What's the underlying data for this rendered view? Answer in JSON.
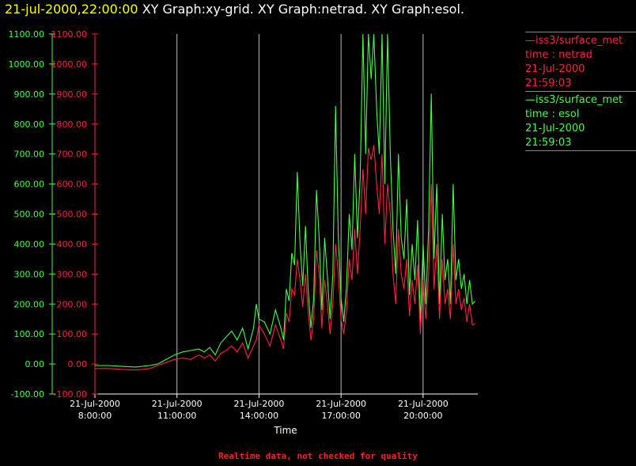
{
  "header": {
    "timestamp": "21-jul-2000,22:00:00",
    "graphs": "XY Graph:xy-grid.  XY Graph:netrad.  XY Graph:esol."
  },
  "legend": [
    {
      "line1": "—iss3/surface_met",
      "line2": "time : netrad",
      "line3": "21-Jul-2000",
      "line4": "21:59:03",
      "color": "#ff2040"
    },
    {
      "line1": "—iss3/surface_met",
      "line2": "time : esol",
      "line3": "21-Jul-2000",
      "line4": "21:59:03",
      "color": "#40ff40"
    }
  ],
  "footnote": "Realtime data, not checked for quality",
  "chart_data": {
    "type": "line",
    "xlabel": "Time",
    "x_ticks": [
      {
        "date": "21-Jul-2000",
        "time": "8:00:00",
        "hour": 8
      },
      {
        "date": "21-Jul-2000",
        "time": "11:00:00",
        "hour": 11
      },
      {
        "date": "21-Jul-2000",
        "time": "14:00:00",
        "hour": 14
      },
      {
        "date": "21-Jul-2000",
        "time": "17:00:00",
        "hour": 17
      },
      {
        "date": "21-Jul-2000",
        "time": "20:00:00",
        "hour": 20
      }
    ],
    "xlim_hours": [
      8.0,
      22.0
    ],
    "ylim": [
      -100,
      1100
    ],
    "y_ticks": [
      "-100.00",
      "0.00",
      "100.00",
      "200.00",
      "300.00",
      "400.00",
      "500.00",
      "600.00",
      "700.00",
      "800.00",
      "900.00",
      "1000.00",
      "1100.00"
    ],
    "grid": "vertical lines at major x ticks",
    "series": [
      {
        "name": "time : netrad",
        "color": "#ff2040",
        "points": [
          [
            8.0,
            -15
          ],
          [
            8.5,
            -15
          ],
          [
            9.0,
            -18
          ],
          [
            9.5,
            -20
          ],
          [
            10.0,
            -15
          ],
          [
            10.3,
            -5
          ],
          [
            10.6,
            5
          ],
          [
            10.9,
            15
          ],
          [
            11.2,
            20
          ],
          [
            11.5,
            15
          ],
          [
            11.8,
            30
          ],
          [
            12.0,
            20
          ],
          [
            12.2,
            30
          ],
          [
            12.4,
            10
          ],
          [
            12.6,
            35
          ],
          [
            12.8,
            45
          ],
          [
            13.0,
            60
          ],
          [
            13.2,
            40
          ],
          [
            13.4,
            70
          ],
          [
            13.6,
            20
          ],
          [
            13.8,
            60
          ],
          [
            13.9,
            80
          ],
          [
            14.0,
            130
          ],
          [
            14.2,
            100
          ],
          [
            14.4,
            60
          ],
          [
            14.6,
            130
          ],
          [
            14.8,
            80
          ],
          [
            14.9,
            50
          ],
          [
            15.0,
            170
          ],
          [
            15.1,
            140
          ],
          [
            15.2,
            250
          ],
          [
            15.3,
            230
          ],
          [
            15.4,
            350
          ],
          [
            15.5,
            280
          ],
          [
            15.6,
            190
          ],
          [
            15.7,
            300
          ],
          [
            15.8,
            170
          ],
          [
            15.9,
            80
          ],
          [
            16.0,
            150
          ],
          [
            16.1,
            380
          ],
          [
            16.2,
            300
          ],
          [
            16.3,
            120
          ],
          [
            16.4,
            280
          ],
          [
            16.5,
            200
          ],
          [
            16.6,
            100
          ],
          [
            16.7,
            200
          ],
          [
            16.8,
            400
          ],
          [
            16.9,
            300
          ],
          [
            17.0,
            150
          ],
          [
            17.1,
            100
          ],
          [
            17.2,
            180
          ],
          [
            17.3,
            350
          ],
          [
            17.4,
            280
          ],
          [
            17.5,
            450
          ],
          [
            17.6,
            300
          ],
          [
            17.7,
            450
          ],
          [
            17.8,
            650
          ],
          [
            17.9,
            500
          ],
          [
            18.0,
            720
          ],
          [
            18.1,
            680
          ],
          [
            18.2,
            730
          ],
          [
            18.3,
            600
          ],
          [
            18.4,
            500
          ],
          [
            18.5,
            700
          ],
          [
            18.6,
            400
          ],
          [
            18.7,
            600
          ],
          [
            18.8,
            500
          ],
          [
            18.9,
            300
          ],
          [
            19.0,
            200
          ],
          [
            19.1,
            450
          ],
          [
            19.2,
            300
          ],
          [
            19.3,
            250
          ],
          [
            19.4,
            350
          ],
          [
            19.5,
            160
          ],
          [
            19.6,
            280
          ],
          [
            19.7,
            200
          ],
          [
            19.8,
            330
          ],
          [
            19.9,
            100
          ],
          [
            20.0,
            280
          ],
          [
            20.1,
            150
          ],
          [
            20.2,
            300
          ],
          [
            20.3,
            600
          ],
          [
            20.4,
            250
          ],
          [
            20.5,
            400
          ],
          [
            20.6,
            150
          ],
          [
            20.7,
            350
          ],
          [
            20.8,
            200
          ],
          [
            20.9,
            250
          ],
          [
            21.0,
            150
          ],
          [
            21.1,
            400
          ],
          [
            21.2,
            200
          ],
          [
            21.3,
            250
          ],
          [
            21.4,
            180
          ],
          [
            21.5,
            220
          ],
          [
            21.6,
            140
          ],
          [
            21.7,
            200
          ],
          [
            21.8,
            130
          ],
          [
            21.9,
            135
          ]
        ]
      },
      {
        "name": "time : esol",
        "color": "#40ff40",
        "points": [
          [
            8.0,
            -5
          ],
          [
            8.5,
            -5
          ],
          [
            9.0,
            -8
          ],
          [
            9.5,
            -10
          ],
          [
            10.0,
            -5
          ],
          [
            10.3,
            0
          ],
          [
            10.6,
            15
          ],
          [
            10.9,
            30
          ],
          [
            11.2,
            40
          ],
          [
            11.5,
            45
          ],
          [
            11.8,
            50
          ],
          [
            12.0,
            40
          ],
          [
            12.2,
            55
          ],
          [
            12.4,
            30
          ],
          [
            12.6,
            70
          ],
          [
            12.8,
            90
          ],
          [
            13.0,
            110
          ],
          [
            13.2,
            80
          ],
          [
            13.4,
            120
          ],
          [
            13.6,
            50
          ],
          [
            13.8,
            120
          ],
          [
            13.9,
            200
          ],
          [
            14.0,
            150
          ],
          [
            14.2,
            140
          ],
          [
            14.4,
            100
          ],
          [
            14.6,
            180
          ],
          [
            14.8,
            120
          ],
          [
            14.9,
            80
          ],
          [
            15.0,
            250
          ],
          [
            15.1,
            210
          ],
          [
            15.2,
            370
          ],
          [
            15.3,
            330
          ],
          [
            15.4,
            640
          ],
          [
            15.5,
            400
          ],
          [
            15.6,
            260
          ],
          [
            15.7,
            460
          ],
          [
            15.8,
            240
          ],
          [
            15.9,
            120
          ],
          [
            16.0,
            220
          ],
          [
            16.1,
            580
          ],
          [
            16.2,
            420
          ],
          [
            16.3,
            180
          ],
          [
            16.4,
            420
          ],
          [
            16.5,
            290
          ],
          [
            16.6,
            150
          ],
          [
            16.7,
            300
          ],
          [
            16.8,
            860
          ],
          [
            16.9,
            420
          ],
          [
            17.0,
            220
          ],
          [
            17.1,
            140
          ],
          [
            17.2,
            260
          ],
          [
            17.3,
            500
          ],
          [
            17.4,
            380
          ],
          [
            17.5,
            700
          ],
          [
            17.6,
            420
          ],
          [
            17.7,
            620
          ],
          [
            17.8,
            1100
          ],
          [
            17.9,
            700
          ],
          [
            18.0,
            1100
          ],
          [
            18.1,
            950
          ],
          [
            18.2,
            1100
          ],
          [
            18.3,
            850
          ],
          [
            18.4,
            700
          ],
          [
            18.5,
            1100
          ],
          [
            18.6,
            600
          ],
          [
            18.7,
            1100
          ],
          [
            18.8,
            700
          ],
          [
            18.9,
            450
          ],
          [
            19.0,
            300
          ],
          [
            19.1,
            700
          ],
          [
            19.2,
            420
          ],
          [
            19.3,
            350
          ],
          [
            19.4,
            550
          ],
          [
            19.5,
            230
          ],
          [
            19.6,
            400
          ],
          [
            19.7,
            280
          ],
          [
            19.8,
            480
          ],
          [
            19.9,
            140
          ],
          [
            20.0,
            400
          ],
          [
            20.1,
            200
          ],
          [
            20.2,
            450
          ],
          [
            20.3,
            900
          ],
          [
            20.4,
            350
          ],
          [
            20.5,
            600
          ],
          [
            20.6,
            200
          ],
          [
            20.7,
            500
          ],
          [
            20.8,
            280
          ],
          [
            20.9,
            350
          ],
          [
            21.0,
            200
          ],
          [
            21.1,
            600
          ],
          [
            21.2,
            280
          ],
          [
            21.3,
            350
          ],
          [
            21.4,
            250
          ],
          [
            21.5,
            300
          ],
          [
            21.6,
            200
          ],
          [
            21.7,
            280
          ],
          [
            21.8,
            200
          ],
          [
            21.9,
            210
          ]
        ]
      }
    ]
  }
}
